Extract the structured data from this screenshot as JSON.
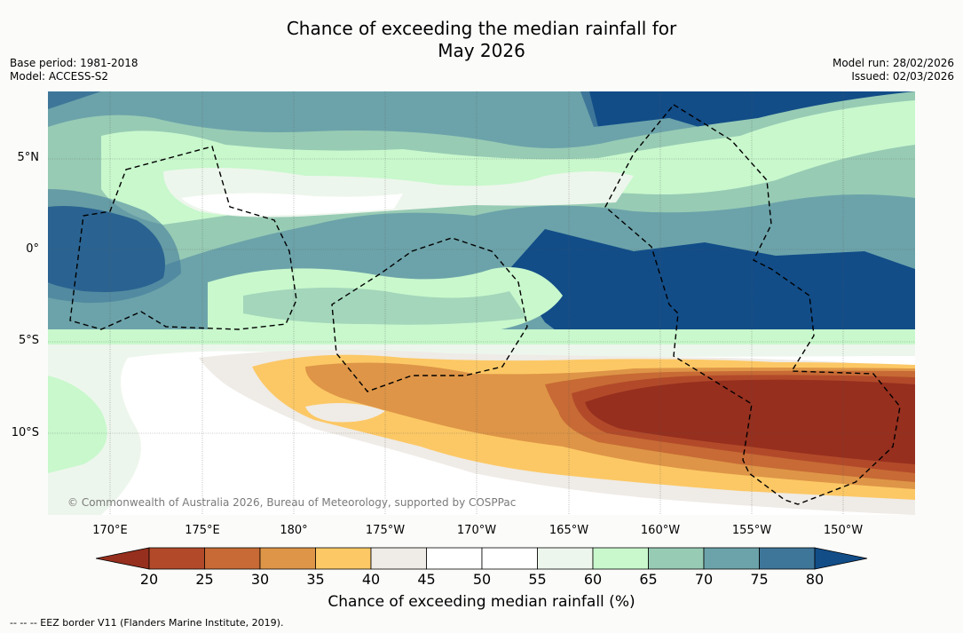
{
  "title": {
    "line1": "Chance of exceeding the median rainfall for",
    "line2": "May 2026"
  },
  "meta": {
    "base_period": "Base period: 1981-2018",
    "model": "Model: ACCESS-S2",
    "model_run": "Model run: 28/02/2026",
    "issued": "Issued: 02/03/2026"
  },
  "map": {
    "latitude_labels": [
      "5°N",
      "0°",
      "5°S",
      "10°S"
    ],
    "longitude_labels": [
      "170°E",
      "175°E",
      "180°",
      "175°W",
      "170°W",
      "165°W",
      "160°W",
      "155°W",
      "150°W"
    ],
    "copyright": "© Commonwealth of Australia 2026, Bureau of Meteorology, supported by COSPPac",
    "colors": {
      "c20": "#962f1e",
      "c25": "#b24a2a",
      "c30": "#c76a35",
      "c35": "#de9547",
      "c40": "#fcc865",
      "c45": "#efebe6",
      "c50": "#ffffff",
      "c55": "#ffffff",
      "c60": "#edf6ec",
      "c65": "#c8f8cc",
      "c70": "#97cbb4",
      "c75": "#6ca3aa",
      "c80": "#3e7699",
      "c85": "#124d88"
    }
  },
  "colorbar": {
    "ticks": [
      "20",
      "25",
      "30",
      "35",
      "40",
      "45",
      "50",
      "55",
      "60",
      "65",
      "70",
      "75",
      "80"
    ],
    "label": "Chance of exceeding median rainfall (%)"
  },
  "footnote": "--  --  -- EEZ border V11 (Flanders Marine Institute, 2019)."
}
